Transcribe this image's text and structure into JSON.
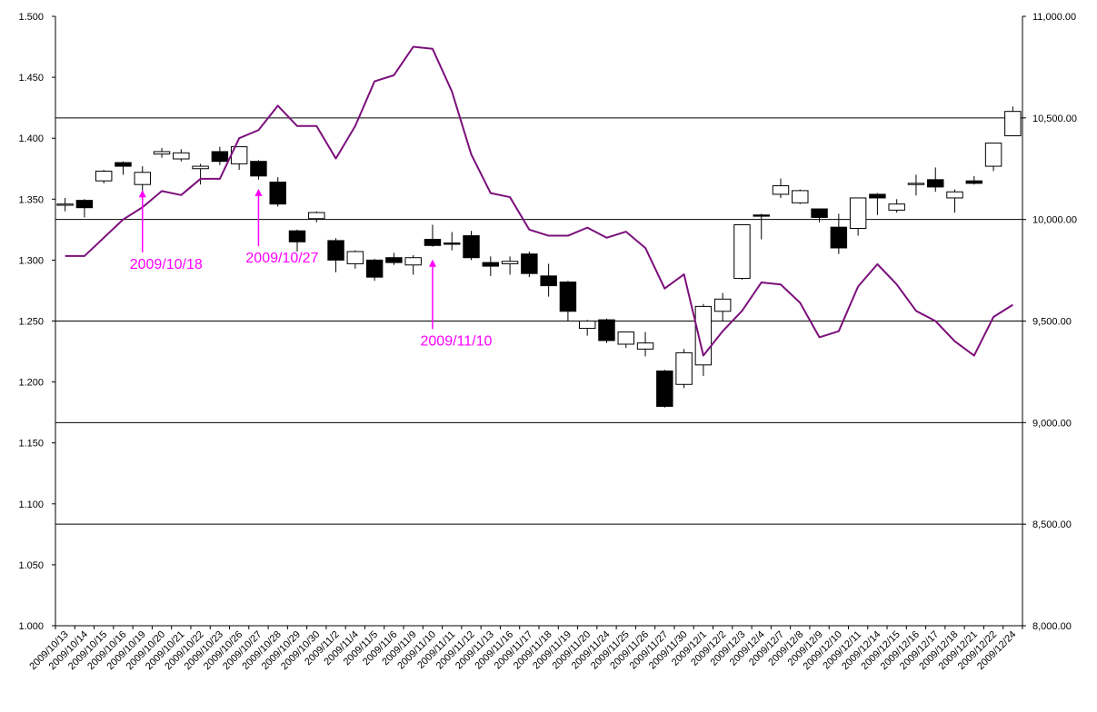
{
  "chart_data": {
    "type": "candlestick",
    "title": "",
    "xlabel": "",
    "ylabel": "",
    "categories": [
      "2009/10/13",
      "2009/10/14",
      "2009/10/15",
      "2009/10/16",
      "2009/10/19",
      "2009/10/20",
      "2009/10/21",
      "2009/10/22",
      "2009/10/23",
      "2009/10/26",
      "2009/10/27",
      "2009/10/28",
      "2009/10/29",
      "2009/10/30",
      "2009/11/2",
      "2009/11/4",
      "2009/11/5",
      "2009/11/6",
      "2009/11/9",
      "2009/11/10",
      "2009/11/11",
      "2009/11/12",
      "2009/11/13",
      "2009/11/16",
      "2009/11/17",
      "2009/11/18",
      "2009/11/19",
      "2009/11/20",
      "2009/11/24",
      "2009/11/25",
      "2009/11/26",
      "2009/11/27",
      "2009/11/30",
      "2009/12/1",
      "2009/12/2",
      "2009/12/3",
      "2009/12/4",
      "2009/12/7",
      "2009/12/8",
      "2009/12/9",
      "2009/12/10",
      "2009/12/11",
      "2009/12/14",
      "2009/12/15",
      "2009/12/16",
      "2009/12/17",
      "2009/12/18",
      "2009/12/21",
      "2009/12/22",
      "2009/12/24"
    ],
    "left_axis": {
      "ylim": [
        1.0,
        1.5
      ],
      "ticks": [
        "1.000",
        "1.050",
        "1.100",
        "1.150",
        "1.200",
        "1.250",
        "1.300",
        "1.350",
        "1.400",
        "1.450",
        "1.500"
      ]
    },
    "right_axis": {
      "ylim": [
        8000,
        11000
      ],
      "ticks": [
        "8,000.00",
        "8,500.00",
        "9,000.00",
        "9,500.00",
        "10,000.00",
        "10,500.00",
        "11,000.00"
      ]
    },
    "reference_lines_right": [
      8500,
      9000,
      9500,
      10000,
      10500
    ],
    "grid": false,
    "candles": [
      {
        "o": 1.345,
        "h": 1.351,
        "l": 1.34,
        "c": 1.346
      },
      {
        "o": 1.349,
        "h": 1.35,
        "l": 1.335,
        "c": 1.343
      },
      {
        "o": 1.365,
        "h": 1.374,
        "l": 1.363,
        "c": 1.373
      },
      {
        "o": 1.38,
        "h": 1.381,
        "l": 1.37,
        "c": 1.377
      },
      {
        "o": 1.362,
        "h": 1.377,
        "l": 1.356,
        "c": 1.372
      },
      {
        "o": 1.387,
        "h": 1.392,
        "l": 1.384,
        "c": 1.389
      },
      {
        "o": 1.383,
        "h": 1.391,
        "l": 1.381,
        "c": 1.388
      },
      {
        "o": 1.375,
        "h": 1.379,
        "l": 1.362,
        "c": 1.377
      },
      {
        "o": 1.389,
        "h": 1.393,
        "l": 1.378,
        "c": 1.381
      },
      {
        "o": 1.379,
        "h": 1.393,
        "l": 1.374,
        "c": 1.393
      },
      {
        "o": 1.381,
        "h": 1.382,
        "l": 1.366,
        "c": 1.369
      },
      {
        "o": 1.364,
        "h": 1.368,
        "l": 1.344,
        "c": 1.346
      },
      {
        "o": 1.324,
        "h": 1.325,
        "l": 1.307,
        "c": 1.315
      },
      {
        "o": 1.334,
        "h": 1.34,
        "l": 1.331,
        "c": 1.339
      },
      {
        "o": 1.316,
        "h": 1.318,
        "l": 1.29,
        "c": 1.3
      },
      {
        "o": 1.297,
        "h": 1.308,
        "l": 1.293,
        "c": 1.307
      },
      {
        "o": 1.3,
        "h": 1.301,
        "l": 1.283,
        "c": 1.286
      },
      {
        "o": 1.302,
        "h": 1.306,
        "l": 1.296,
        "c": 1.298
      },
      {
        "o": 1.296,
        "h": 1.304,
        "l": 1.288,
        "c": 1.302
      },
      {
        "o": 1.317,
        "h": 1.329,
        "l": 1.311,
        "c": 1.312
      },
      {
        "o": 1.314,
        "h": 1.323,
        "l": 1.308,
        "c": 1.313
      },
      {
        "o": 1.32,
        "h": 1.324,
        "l": 1.3,
        "c": 1.302
      },
      {
        "o": 1.298,
        "h": 1.303,
        "l": 1.287,
        "c": 1.295
      },
      {
        "o": 1.297,
        "h": 1.303,
        "l": 1.288,
        "c": 1.299
      },
      {
        "o": 1.305,
        "h": 1.307,
        "l": 1.286,
        "c": 1.289
      },
      {
        "o": 1.287,
        "h": 1.297,
        "l": 1.27,
        "c": 1.279
      },
      {
        "o": 1.282,
        "h": 1.283,
        "l": 1.25,
        "c": 1.258
      },
      {
        "o": 1.244,
        "h": 1.251,
        "l": 1.238,
        "c": 1.25
      },
      {
        "o": 1.251,
        "h": 1.252,
        "l": 1.232,
        "c": 1.234
      },
      {
        "o": 1.231,
        "h": 1.241,
        "l": 1.228,
        "c": 1.241
      },
      {
        "o": 1.227,
        "h": 1.241,
        "l": 1.221,
        "c": 1.232
      },
      {
        "o": 1.209,
        "h": 1.21,
        "l": 1.179,
        "c": 1.18
      },
      {
        "o": 1.198,
        "h": 1.227,
        "l": 1.195,
        "c": 1.224
      },
      {
        "o": 1.214,
        "h": 1.264,
        "l": 1.205,
        "c": 1.262
      },
      {
        "o": 1.258,
        "h": 1.273,
        "l": 1.25,
        "c": 1.268
      },
      {
        "o": 1.285,
        "h": 1.329,
        "l": 1.284,
        "c": 1.329
      },
      {
        "o": 1.337,
        "h": 1.338,
        "l": 1.317,
        "c": 1.336
      },
      {
        "o": 1.354,
        "h": 1.367,
        "l": 1.351,
        "c": 1.361
      },
      {
        "o": 1.347,
        "h": 1.358,
        "l": 1.346,
        "c": 1.357
      },
      {
        "o": 1.342,
        "h": 1.342,
        "l": 1.331,
        "c": 1.335
      },
      {
        "o": 1.327,
        "h": 1.338,
        "l": 1.305,
        "c": 1.31
      },
      {
        "o": 1.326,
        "h": 1.351,
        "l": 1.32,
        "c": 1.351
      },
      {
        "o": 1.354,
        "h": 1.355,
        "l": 1.337,
        "c": 1.351
      },
      {
        "o": 1.341,
        "h": 1.35,
        "l": 1.339,
        "c": 1.346
      },
      {
        "o": 1.362,
        "h": 1.37,
        "l": 1.353,
        "c": 1.363
      },
      {
        "o": 1.366,
        "h": 1.376,
        "l": 1.356,
        "c": 1.36
      },
      {
        "o": 1.351,
        "h": 1.358,
        "l": 1.339,
        "c": 1.356
      },
      {
        "o": 1.365,
        "h": 1.369,
        "l": 1.362,
        "c": 1.363
      },
      {
        "o": 1.377,
        "h": 1.396,
        "l": 1.373,
        "c": 1.396
      },
      {
        "o": 1.402,
        "h": 1.426,
        "l": 1.402,
        "c": 1.422
      }
    ],
    "line_series": {
      "axis": "right",
      "color": "#7b0f7b",
      "values": [
        9820,
        9820,
        9910,
        10000,
        10060,
        10140,
        10120,
        10200,
        10200,
        10400,
        10440,
        10560,
        10460,
        10460,
        10300,
        10460,
        10680,
        10710,
        10850,
        10840,
        10630,
        10320,
        10130,
        10110,
        9950,
        9920,
        9920,
        9960,
        9910,
        9940,
        9860,
        9660,
        9730,
        9330,
        9450,
        9550,
        9690,
        9680,
        9590,
        9420,
        9450,
        9670,
        9780,
        9680,
        9550,
        9500,
        9400,
        9330,
        9520,
        9580
      ]
    },
    "annotations": [
      {
        "text": "2009/10/18",
        "color": "#ff00ff",
        "index": 4,
        "value": 1.362,
        "label_value": 1.293
      },
      {
        "text": "2009/10/27",
        "color": "#ff00ff",
        "index": 10,
        "value": 1.363,
        "label_value": 1.298
      },
      {
        "text": "2009/11/10",
        "color": "#ff00ff",
        "index": 19,
        "value": 1.305,
        "label_value": 1.23
      }
    ],
    "colors": {
      "candle_up_fill": "#ffffff",
      "candle_down_fill": "#000000",
      "candle_stroke": "#000000",
      "line": "#7b0f7b",
      "annotation": "#ff00ff",
      "axis": "#000000"
    }
  }
}
